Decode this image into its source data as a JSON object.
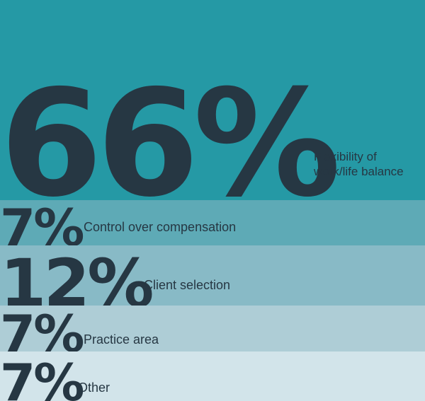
{
  "chart_data": {
    "type": "bar",
    "categories": [
      "Flexibility of work/life balance",
      "Control over compensation",
      "Client selection",
      "Practice area",
      "Other"
    ],
    "values": [
      66,
      7,
      12,
      7,
      7
    ],
    "value_labels": [
      "66%",
      "7%",
      "12%",
      "7%",
      "7%"
    ],
    "colors": [
      "#2599a5",
      "#5eaab6",
      "#88bac6",
      "#aecdd6",
      "#d2e4ea"
    ],
    "text_color": "#263743",
    "legend": "none",
    "grid": false
  }
}
